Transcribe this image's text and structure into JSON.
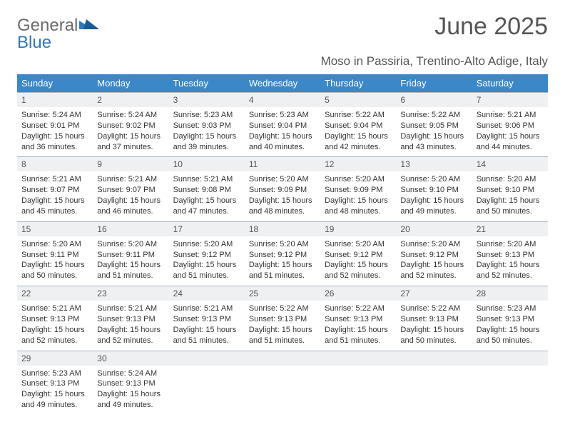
{
  "logo": {
    "text1": "General",
    "text2": "Blue"
  },
  "title": "June 2025",
  "location": "Moso in Passiria, Trentino-Alto Adige, Italy",
  "colors": {
    "header_bg": "#3b87c8",
    "header_text": "#ffffff",
    "daynum_bg": "#eef0f2",
    "daynum_border": "#a9b7c4",
    "body_text": "#333333",
    "title_text": "#555555",
    "logo_gray": "#6a6a6a",
    "logo_blue": "#2f78bd",
    "page_bg": "#ffffff"
  },
  "fonts": {
    "title_size": 34,
    "location_size": 17,
    "header_size": 13,
    "daynum_size": 12,
    "cell_size": 11
  },
  "day_headers": [
    "Sunday",
    "Monday",
    "Tuesday",
    "Wednesday",
    "Thursday",
    "Friday",
    "Saturday"
  ],
  "weeks": [
    {
      "nums": [
        "1",
        "2",
        "3",
        "4",
        "5",
        "6",
        "7"
      ],
      "cells": [
        {
          "sunrise": "Sunrise: 5:24 AM",
          "sunset": "Sunset: 9:01 PM",
          "day1": "Daylight: 15 hours",
          "day2": "and 36 minutes."
        },
        {
          "sunrise": "Sunrise: 5:24 AM",
          "sunset": "Sunset: 9:02 PM",
          "day1": "Daylight: 15 hours",
          "day2": "and 37 minutes."
        },
        {
          "sunrise": "Sunrise: 5:23 AM",
          "sunset": "Sunset: 9:03 PM",
          "day1": "Daylight: 15 hours",
          "day2": "and 39 minutes."
        },
        {
          "sunrise": "Sunrise: 5:23 AM",
          "sunset": "Sunset: 9:04 PM",
          "day1": "Daylight: 15 hours",
          "day2": "and 40 minutes."
        },
        {
          "sunrise": "Sunrise: 5:22 AM",
          "sunset": "Sunset: 9:04 PM",
          "day1": "Daylight: 15 hours",
          "day2": "and 42 minutes."
        },
        {
          "sunrise": "Sunrise: 5:22 AM",
          "sunset": "Sunset: 9:05 PM",
          "day1": "Daylight: 15 hours",
          "day2": "and 43 minutes."
        },
        {
          "sunrise": "Sunrise: 5:21 AM",
          "sunset": "Sunset: 9:06 PM",
          "day1": "Daylight: 15 hours",
          "day2": "and 44 minutes."
        }
      ]
    },
    {
      "nums": [
        "8",
        "9",
        "10",
        "11",
        "12",
        "13",
        "14"
      ],
      "cells": [
        {
          "sunrise": "Sunrise: 5:21 AM",
          "sunset": "Sunset: 9:07 PM",
          "day1": "Daylight: 15 hours",
          "day2": "and 45 minutes."
        },
        {
          "sunrise": "Sunrise: 5:21 AM",
          "sunset": "Sunset: 9:07 PM",
          "day1": "Daylight: 15 hours",
          "day2": "and 46 minutes."
        },
        {
          "sunrise": "Sunrise: 5:21 AM",
          "sunset": "Sunset: 9:08 PM",
          "day1": "Daylight: 15 hours",
          "day2": "and 47 minutes."
        },
        {
          "sunrise": "Sunrise: 5:20 AM",
          "sunset": "Sunset: 9:09 PM",
          "day1": "Daylight: 15 hours",
          "day2": "and 48 minutes."
        },
        {
          "sunrise": "Sunrise: 5:20 AM",
          "sunset": "Sunset: 9:09 PM",
          "day1": "Daylight: 15 hours",
          "day2": "and 48 minutes."
        },
        {
          "sunrise": "Sunrise: 5:20 AM",
          "sunset": "Sunset: 9:10 PM",
          "day1": "Daylight: 15 hours",
          "day2": "and 49 minutes."
        },
        {
          "sunrise": "Sunrise: 5:20 AM",
          "sunset": "Sunset: 9:10 PM",
          "day1": "Daylight: 15 hours",
          "day2": "and 50 minutes."
        }
      ]
    },
    {
      "nums": [
        "15",
        "16",
        "17",
        "18",
        "19",
        "20",
        "21"
      ],
      "cells": [
        {
          "sunrise": "Sunrise: 5:20 AM",
          "sunset": "Sunset: 9:11 PM",
          "day1": "Daylight: 15 hours",
          "day2": "and 50 minutes."
        },
        {
          "sunrise": "Sunrise: 5:20 AM",
          "sunset": "Sunset: 9:11 PM",
          "day1": "Daylight: 15 hours",
          "day2": "and 51 minutes."
        },
        {
          "sunrise": "Sunrise: 5:20 AM",
          "sunset": "Sunset: 9:12 PM",
          "day1": "Daylight: 15 hours",
          "day2": "and 51 minutes."
        },
        {
          "sunrise": "Sunrise: 5:20 AM",
          "sunset": "Sunset: 9:12 PM",
          "day1": "Daylight: 15 hours",
          "day2": "and 51 minutes."
        },
        {
          "sunrise": "Sunrise: 5:20 AM",
          "sunset": "Sunset: 9:12 PM",
          "day1": "Daylight: 15 hours",
          "day2": "and 52 minutes."
        },
        {
          "sunrise": "Sunrise: 5:20 AM",
          "sunset": "Sunset: 9:12 PM",
          "day1": "Daylight: 15 hours",
          "day2": "and 52 minutes."
        },
        {
          "sunrise": "Sunrise: 5:20 AM",
          "sunset": "Sunset: 9:13 PM",
          "day1": "Daylight: 15 hours",
          "day2": "and 52 minutes."
        }
      ]
    },
    {
      "nums": [
        "22",
        "23",
        "24",
        "25",
        "26",
        "27",
        "28"
      ],
      "cells": [
        {
          "sunrise": "Sunrise: 5:21 AM",
          "sunset": "Sunset: 9:13 PM",
          "day1": "Daylight: 15 hours",
          "day2": "and 52 minutes."
        },
        {
          "sunrise": "Sunrise: 5:21 AM",
          "sunset": "Sunset: 9:13 PM",
          "day1": "Daylight: 15 hours",
          "day2": "and 52 minutes."
        },
        {
          "sunrise": "Sunrise: 5:21 AM",
          "sunset": "Sunset: 9:13 PM",
          "day1": "Daylight: 15 hours",
          "day2": "and 51 minutes."
        },
        {
          "sunrise": "Sunrise: 5:22 AM",
          "sunset": "Sunset: 9:13 PM",
          "day1": "Daylight: 15 hours",
          "day2": "and 51 minutes."
        },
        {
          "sunrise": "Sunrise: 5:22 AM",
          "sunset": "Sunset: 9:13 PM",
          "day1": "Daylight: 15 hours",
          "day2": "and 51 minutes."
        },
        {
          "sunrise": "Sunrise: 5:22 AM",
          "sunset": "Sunset: 9:13 PM",
          "day1": "Daylight: 15 hours",
          "day2": "and 50 minutes."
        },
        {
          "sunrise": "Sunrise: 5:23 AM",
          "sunset": "Sunset: 9:13 PM",
          "day1": "Daylight: 15 hours",
          "day2": "and 50 minutes."
        }
      ]
    },
    {
      "nums": [
        "29",
        "30",
        "",
        "",
        "",
        "",
        ""
      ],
      "cells": [
        {
          "sunrise": "Sunrise: 5:23 AM",
          "sunset": "Sunset: 9:13 PM",
          "day1": "Daylight: 15 hours",
          "day2": "and 49 minutes."
        },
        {
          "sunrise": "Sunrise: 5:24 AM",
          "sunset": "Sunset: 9:13 PM",
          "day1": "Daylight: 15 hours",
          "day2": "and 49 minutes."
        },
        {
          "sunrise": "",
          "sunset": "",
          "day1": "",
          "day2": ""
        },
        {
          "sunrise": "",
          "sunset": "",
          "day1": "",
          "day2": ""
        },
        {
          "sunrise": "",
          "sunset": "",
          "day1": "",
          "day2": ""
        },
        {
          "sunrise": "",
          "sunset": "",
          "day1": "",
          "day2": ""
        },
        {
          "sunrise": "",
          "sunset": "",
          "day1": "",
          "day2": ""
        }
      ]
    }
  ]
}
